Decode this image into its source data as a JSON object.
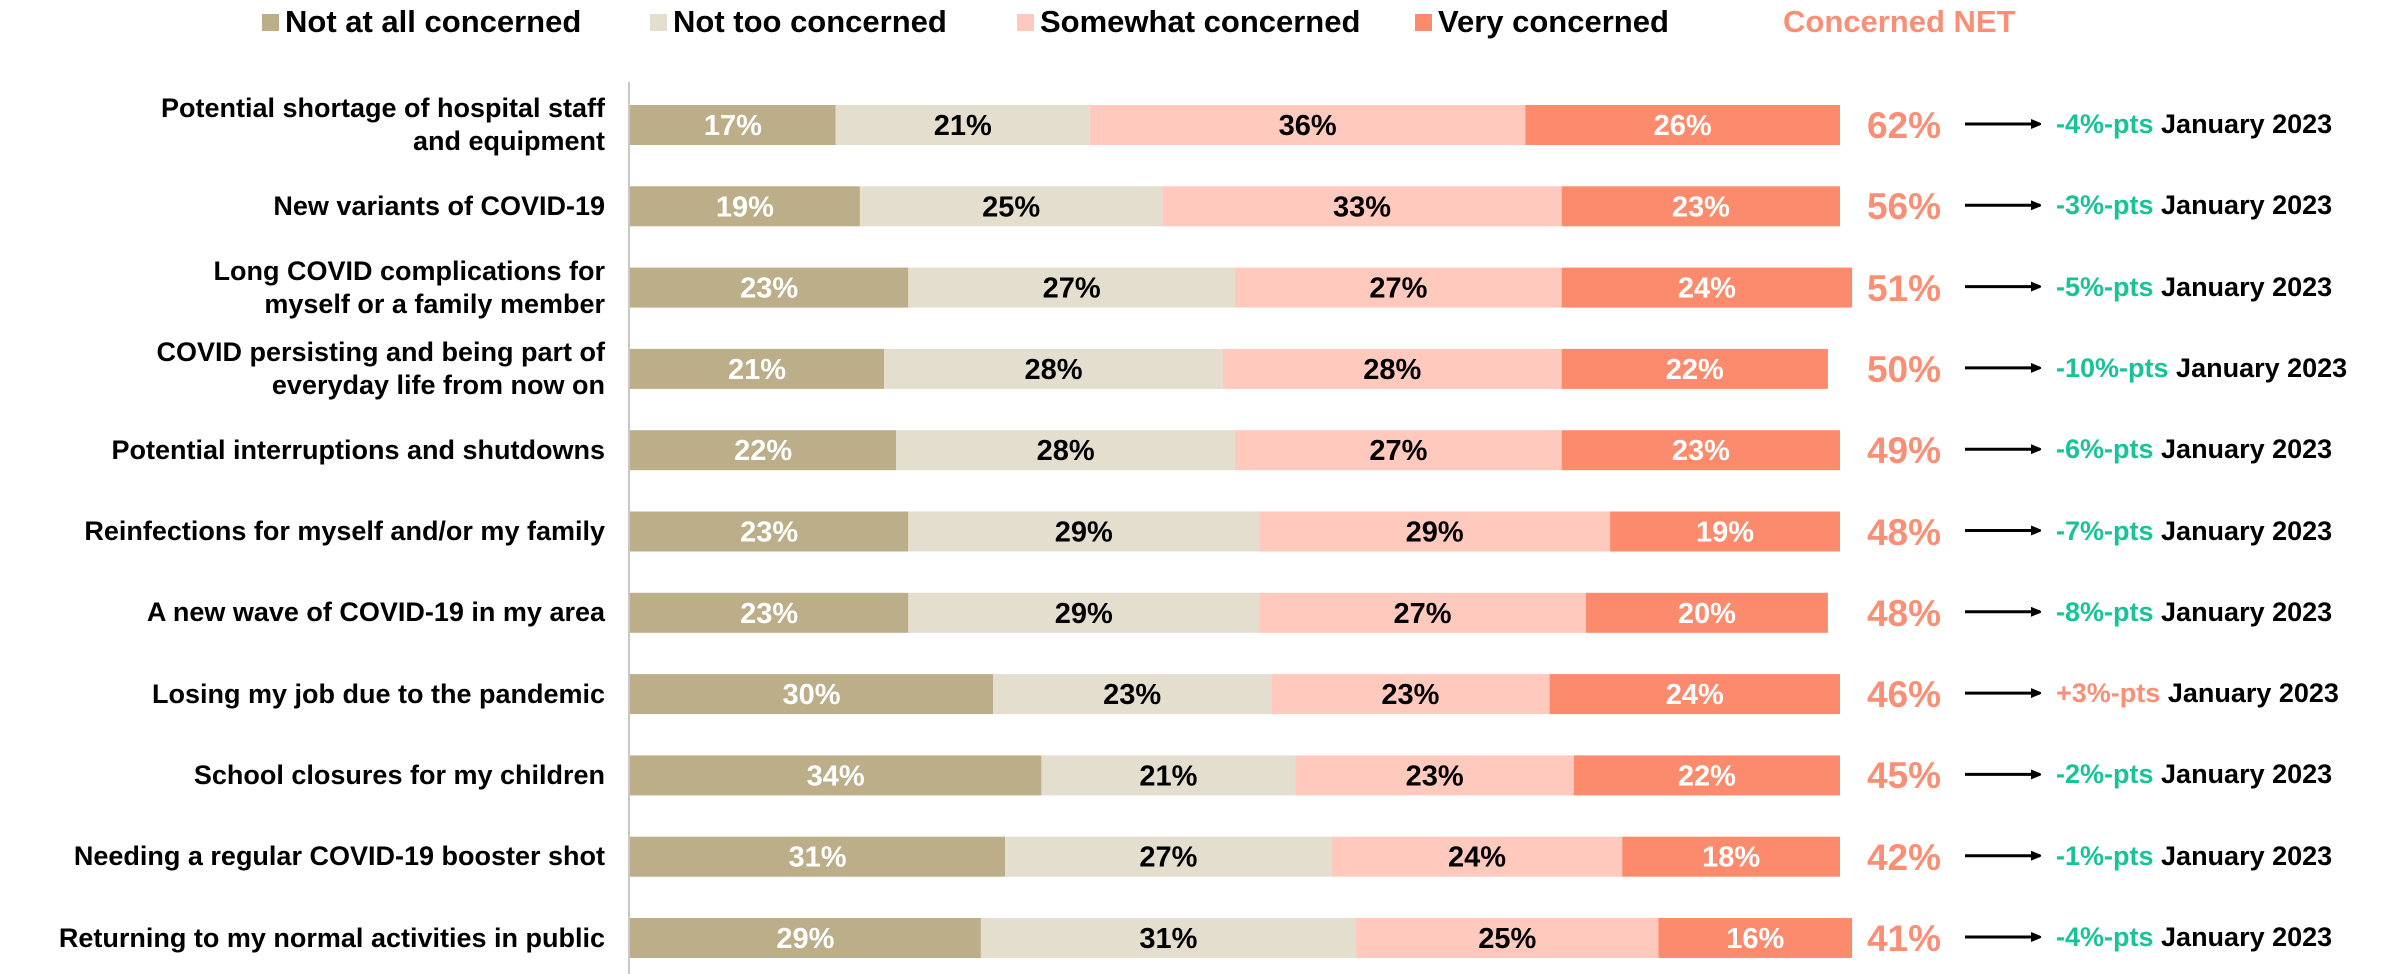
{
  "colors": {
    "not_at_all": "#BBAE88",
    "not_too": "#E4DECE",
    "somewhat": "#FFCABD",
    "very": "#FC8A6C",
    "net": "#FA8F76",
    "change_negative": "#19C39A",
    "change_positive": "#FA8F76",
    "axis": "#C8C8C8"
  },
  "legend": {
    "items": [
      {
        "label": "Not at all concerned",
        "color": "#BBAE88"
      },
      {
        "label": "Not too concerned",
        "color": "#E4DECE"
      },
      {
        "label": "Somewhat concerned",
        "color": "#FFCABD"
      },
      {
        "label": "Very concerned",
        "color": "#FC8A6C"
      }
    ],
    "net_label": "Concerned NET"
  },
  "chart_data": {
    "type": "bar",
    "orientation": "horizontal",
    "stacked": true,
    "percent_stacked": true,
    "xlim": [
      0,
      100
    ],
    "legend_position": "top",
    "grid": false,
    "categories": [
      [
        "Potential shortage of hospital staff",
        "and equipment"
      ],
      [
        "New variants of COVID-19"
      ],
      [
        "Long COVID complications for",
        "myself or a family member"
      ],
      [
        "COVID persisting and being part of",
        "everyday life from now on"
      ],
      [
        "Potential interruptions and shutdowns"
      ],
      [
        "Reinfections for myself and/or my family"
      ],
      [
        "A new wave of COVID-19 in my area"
      ],
      [
        "Losing my job due to the pandemic"
      ],
      [
        "School closures for my children"
      ],
      [
        "Needing a regular COVID-19 booster shot"
      ],
      [
        "Returning to my normal activities in public"
      ]
    ],
    "series": [
      {
        "name": "Not at all concerned",
        "values": [
          17,
          19,
          23,
          21,
          22,
          23,
          23,
          30,
          34,
          31,
          29
        ]
      },
      {
        "name": "Not too concerned",
        "values": [
          21,
          25,
          27,
          28,
          28,
          29,
          29,
          23,
          21,
          27,
          31
        ]
      },
      {
        "name": "Somewhat concerned",
        "values": [
          36,
          33,
          27,
          28,
          27,
          29,
          27,
          23,
          23,
          24,
          25
        ]
      },
      {
        "name": "Very concerned",
        "values": [
          26,
          23,
          24,
          22,
          23,
          19,
          20,
          24,
          22,
          18,
          16
        ]
      }
    ],
    "value_suffix": "%",
    "label_colors": [
      "#FFFFFF",
      "#000000",
      "#000000",
      "#FFFFFF"
    ],
    "net_values": [
      "62%",
      "56%",
      "51%",
      "50%",
      "49%",
      "48%",
      "48%",
      "46%",
      "45%",
      "42%",
      "41%"
    ],
    "changes": [
      {
        "delta": "-4%-pts",
        "direction": "negative",
        "period": "January 2023"
      },
      {
        "delta": "-3%-pts",
        "direction": "negative",
        "period": "January 2023"
      },
      {
        "delta": "-5%-pts",
        "direction": "negative",
        "period": "January 2023"
      },
      {
        "delta": "-10%-pts",
        "direction": "negative",
        "period": "January 2023"
      },
      {
        "delta": "-6%-pts",
        "direction": "negative",
        "period": "January 2023"
      },
      {
        "delta": "-7%-pts",
        "direction": "negative",
        "period": "January 2023"
      },
      {
        "delta": "-8%-pts",
        "direction": "negative",
        "period": "January 2023"
      },
      {
        "delta": "+3%-pts",
        "direction": "positive",
        "period": "January 2023"
      },
      {
        "delta": "-2%-pts",
        "direction": "negative",
        "period": "January 2023"
      },
      {
        "delta": "-1%-pts",
        "direction": "negative",
        "period": "January 2023"
      },
      {
        "delta": "-4%-pts",
        "direction": "negative",
        "period": "January 2023"
      }
    ]
  }
}
